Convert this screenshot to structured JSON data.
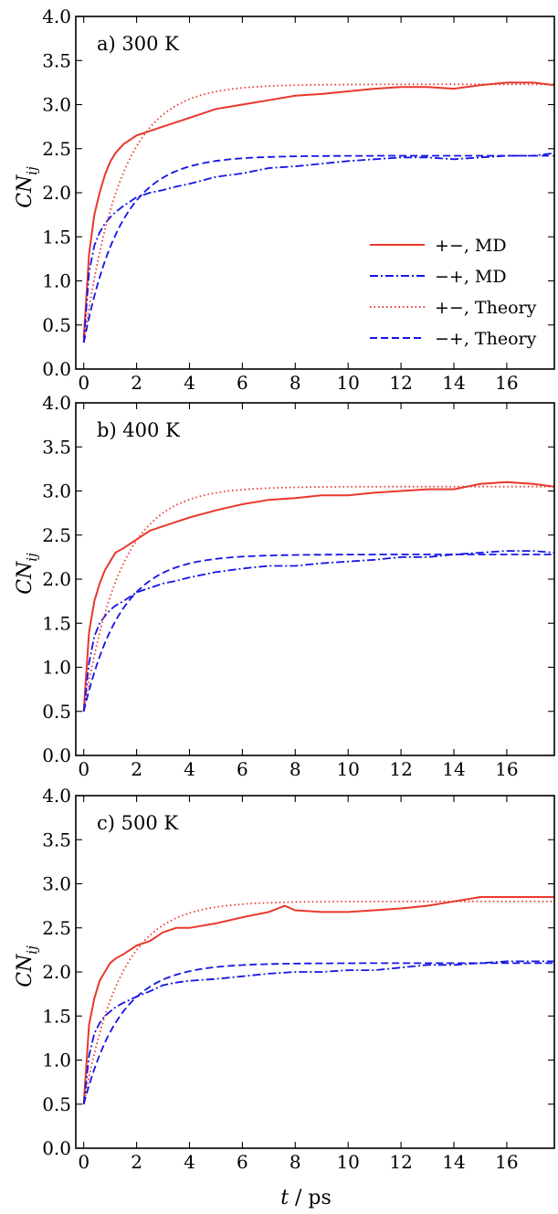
{
  "figure": {
    "ylabel_main": "CN",
    "ylabel_sub": "ij",
    "xlabel_var": "t",
    "xlabel_unit": " / ps"
  },
  "legend": [
    {
      "label": "+−, MD",
      "color": "#e8382c",
      "style": "solid"
    },
    {
      "label": "−+, MD",
      "color": "#1414e6",
      "style": "dashdot"
    },
    {
      "label": "+−, Theory",
      "color": "#e8382c",
      "style": "dotted"
    },
    {
      "label": "−+, Theory",
      "color": "#1414e6",
      "style": "dashed"
    }
  ],
  "chart_data": [
    {
      "type": "line",
      "panel_label": "a) 300 K",
      "xlabel": "",
      "ylabel": "CN_ij",
      "xlim": [
        -0.3,
        17.8
      ],
      "ylim": [
        0.0,
        4.0
      ],
      "xticks": [
        0,
        2,
        4,
        6,
        8,
        10,
        12,
        14,
        16
      ],
      "yticks": [
        0.0,
        0.5,
        1.0,
        1.5,
        2.0,
        2.5,
        3.0,
        3.5,
        4.0
      ],
      "legend_position": "center-right",
      "series": [
        {
          "name": "+−, MD",
          "color": "#e8382c",
          "style": "solid",
          "x": [
            0,
            0.2,
            0.4,
            0.6,
            0.8,
            1.0,
            1.2,
            1.5,
            2.0,
            2.5,
            3.0,
            3.5,
            4.0,
            5.0,
            6.0,
            7.0,
            8.0,
            9.0,
            10.0,
            11.0,
            12.0,
            13.0,
            14.0,
            15.0,
            16.0,
            17.0,
            17.8
          ],
          "y": [
            0.35,
            1.3,
            1.75,
            2.0,
            2.2,
            2.35,
            2.45,
            2.55,
            2.65,
            2.7,
            2.75,
            2.8,
            2.85,
            2.95,
            3.0,
            3.05,
            3.1,
            3.12,
            3.15,
            3.18,
            3.2,
            3.2,
            3.18,
            3.22,
            3.25,
            3.25,
            3.22
          ]
        },
        {
          "name": "−+, MD",
          "color": "#1414e6",
          "style": "dashdot",
          "x": [
            0,
            0.2,
            0.4,
            0.6,
            0.8,
            1.0,
            1.2,
            1.5,
            2.0,
            2.5,
            3.0,
            3.5,
            4.0,
            5.0,
            6.0,
            7.0,
            8.0,
            9.0,
            10.0,
            11.0,
            12.0,
            13.0,
            14.0,
            15.0,
            16.0,
            17.0,
            17.8
          ],
          "y": [
            0.3,
            1.1,
            1.4,
            1.55,
            1.65,
            1.72,
            1.78,
            1.85,
            1.95,
            2.0,
            2.03,
            2.07,
            2.1,
            2.18,
            2.22,
            2.28,
            2.3,
            2.33,
            2.36,
            2.38,
            2.4,
            2.4,
            2.38,
            2.4,
            2.42,
            2.42,
            2.45
          ]
        },
        {
          "name": "+−, Theory",
          "color": "#e8382c",
          "style": "dotted",
          "model": {
            "a": 0.3,
            "A": 3.23,
            "tau": 1.4
          }
        },
        {
          "name": "−+, Theory",
          "color": "#1414e6",
          "style": "dashed",
          "model": {
            "a": 0.3,
            "A": 2.42,
            "tau": 1.4
          }
        }
      ]
    },
    {
      "type": "line",
      "panel_label": "b) 400 K",
      "xlabel": "",
      "ylabel": "CN_ij",
      "xlim": [
        -0.3,
        17.8
      ],
      "ylim": [
        0.0,
        4.0
      ],
      "xticks": [
        0,
        2,
        4,
        6,
        8,
        10,
        12,
        14,
        16
      ],
      "yticks": [
        0.0,
        0.5,
        1.0,
        1.5,
        2.0,
        2.5,
        3.0,
        3.5,
        4.0
      ],
      "series": [
        {
          "name": "+−, MD",
          "color": "#e8382c",
          "style": "solid",
          "x": [
            0,
            0.2,
            0.4,
            0.6,
            0.8,
            1.0,
            1.2,
            1.5,
            2.0,
            2.5,
            3.0,
            3.5,
            4.0,
            5.0,
            6.0,
            7.0,
            8.0,
            9.0,
            10.0,
            11.0,
            12.0,
            13.0,
            14.0,
            15.0,
            16.0,
            17.0,
            17.8
          ],
          "y": [
            0.5,
            1.4,
            1.75,
            1.95,
            2.1,
            2.2,
            2.3,
            2.35,
            2.45,
            2.55,
            2.6,
            2.65,
            2.7,
            2.78,
            2.85,
            2.9,
            2.92,
            2.95,
            2.95,
            2.98,
            3.0,
            3.02,
            3.02,
            3.08,
            3.1,
            3.08,
            3.05
          ]
        },
        {
          "name": "−+, MD",
          "color": "#1414e6",
          "style": "dashdot",
          "x": [
            0,
            0.2,
            0.4,
            0.6,
            0.8,
            1.0,
            1.2,
            1.5,
            2.0,
            2.5,
            3.0,
            3.5,
            4.0,
            5.0,
            6.0,
            7.0,
            8.0,
            9.0,
            10.0,
            11.0,
            12.0,
            13.0,
            14.0,
            15.0,
            16.0,
            17.0,
            17.8
          ],
          "y": [
            0.5,
            1.05,
            1.35,
            1.5,
            1.58,
            1.65,
            1.7,
            1.75,
            1.85,
            1.9,
            1.95,
            1.98,
            2.02,
            2.08,
            2.12,
            2.15,
            2.15,
            2.18,
            2.2,
            2.22,
            2.25,
            2.25,
            2.28,
            2.3,
            2.32,
            2.32,
            2.3
          ]
        },
        {
          "name": "+−, Theory",
          "color": "#e8382c",
          "style": "dotted",
          "model": {
            "a": 0.5,
            "A": 3.05,
            "tau": 1.4
          }
        },
        {
          "name": "−+, Theory",
          "color": "#1414e6",
          "style": "dashed",
          "model": {
            "a": 0.5,
            "A": 2.28,
            "tau": 1.4
          }
        }
      ]
    },
    {
      "type": "line",
      "panel_label": "c) 500 K",
      "xlabel": "t / ps",
      "ylabel": "CN_ij",
      "xlim": [
        -0.3,
        17.8
      ],
      "ylim": [
        0.0,
        4.0
      ],
      "xticks": [
        0,
        2,
        4,
        6,
        8,
        10,
        12,
        14,
        16
      ],
      "yticks": [
        0.0,
        0.5,
        1.0,
        1.5,
        2.0,
        2.5,
        3.0,
        3.5,
        4.0
      ],
      "series": [
        {
          "name": "+−, MD",
          "color": "#e8382c",
          "style": "solid",
          "x": [
            0,
            0.2,
            0.4,
            0.6,
            0.8,
            1.0,
            1.2,
            1.5,
            2.0,
            2.5,
            3.0,
            3.5,
            4.0,
            5.0,
            6.0,
            7.0,
            7.6,
            8.0,
            9.0,
            10.0,
            11.0,
            12.0,
            13.0,
            14.0,
            15.0,
            16.0,
            17.0,
            17.8
          ],
          "y": [
            0.5,
            1.4,
            1.7,
            1.9,
            2.0,
            2.1,
            2.15,
            2.2,
            2.3,
            2.35,
            2.45,
            2.5,
            2.5,
            2.55,
            2.62,
            2.68,
            2.75,
            2.7,
            2.68,
            2.68,
            2.7,
            2.72,
            2.75,
            2.8,
            2.85,
            2.85,
            2.85,
            2.85
          ]
        },
        {
          "name": "−+, MD",
          "color": "#1414e6",
          "style": "dashdot",
          "x": [
            0,
            0.2,
            0.4,
            0.6,
            0.8,
            1.0,
            1.2,
            1.5,
            2.0,
            2.5,
            3.0,
            3.5,
            4.0,
            5.0,
            6.0,
            7.0,
            8.0,
            9.0,
            10.0,
            11.0,
            12.0,
            13.0,
            14.0,
            15.0,
            16.0,
            17.0,
            17.8
          ],
          "y": [
            0.5,
            1.05,
            1.3,
            1.42,
            1.5,
            1.55,
            1.6,
            1.65,
            1.72,
            1.78,
            1.85,
            1.88,
            1.9,
            1.92,
            1.95,
            1.98,
            2.0,
            2.0,
            2.02,
            2.02,
            2.05,
            2.08,
            2.08,
            2.1,
            2.12,
            2.12,
            2.12
          ]
        },
        {
          "name": "+−, Theory",
          "color": "#e8382c",
          "style": "dotted",
          "model": {
            "a": 0.5,
            "A": 2.8,
            "tau": 1.4
          }
        },
        {
          "name": "−+, Theory",
          "color": "#1414e6",
          "style": "dashed",
          "model": {
            "a": 0.5,
            "A": 2.1,
            "tau": 1.4
          }
        }
      ]
    }
  ]
}
